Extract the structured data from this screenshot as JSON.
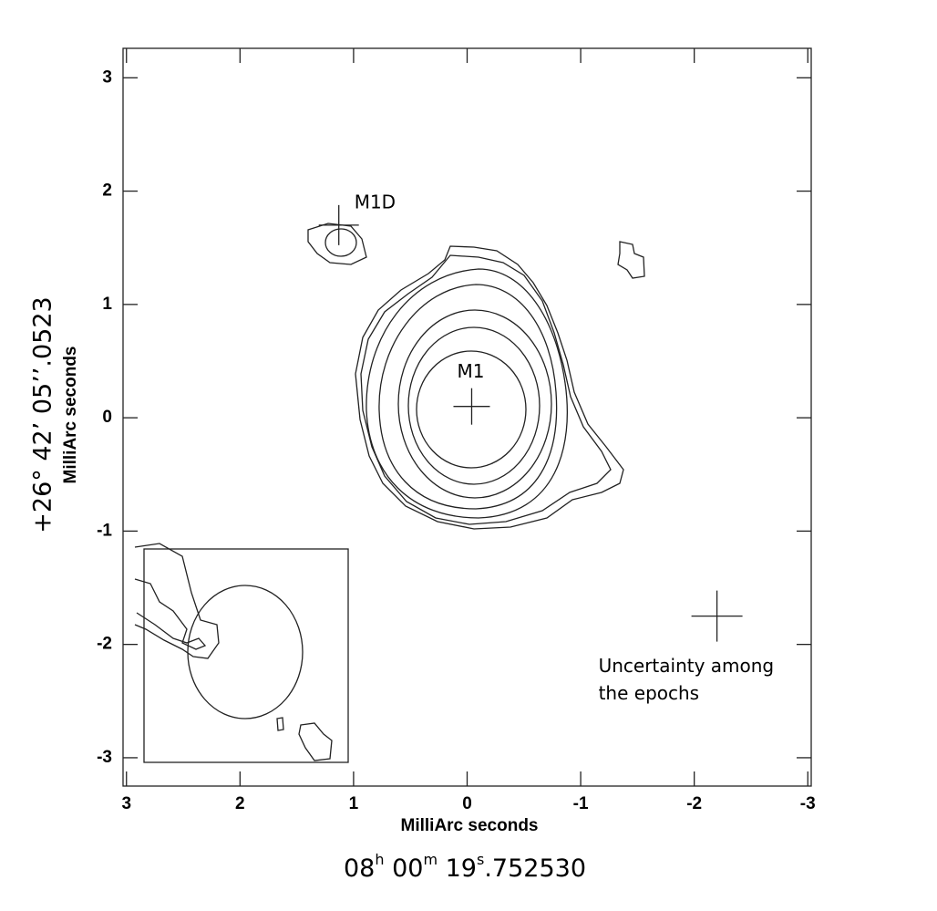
{
  "chart_data": {
    "type": "contour",
    "xlabel": "MilliArc seconds",
    "ylabel": "MilliArc seconds",
    "dec_label": "+26° 42’ 05’’.0523",
    "ra_label": [
      "08",
      "h",
      " 00",
      "m",
      " 19",
      "s",
      ".752530"
    ],
    "xlim": [
      3.03,
      -3.03
    ],
    "ylim": [
      -3.25,
      3.26
    ],
    "xticks": [
      3,
      2,
      1,
      0,
      -1,
      -2,
      -3
    ],
    "yticks": [
      3,
      2,
      1,
      0,
      -1,
      -2,
      -3
    ],
    "markers": [
      {
        "label": [
          "M1D"
        ],
        "x": 1.13,
        "y": 1.7
      },
      {
        "label": [
          "M1"
        ],
        "x": -0.04,
        "y": 0.1
      },
      {
        "label": [
          "Uncertainty among",
          "the epochs"
        ],
        "x": -2.2,
        "y": -1.75
      }
    ]
  }
}
